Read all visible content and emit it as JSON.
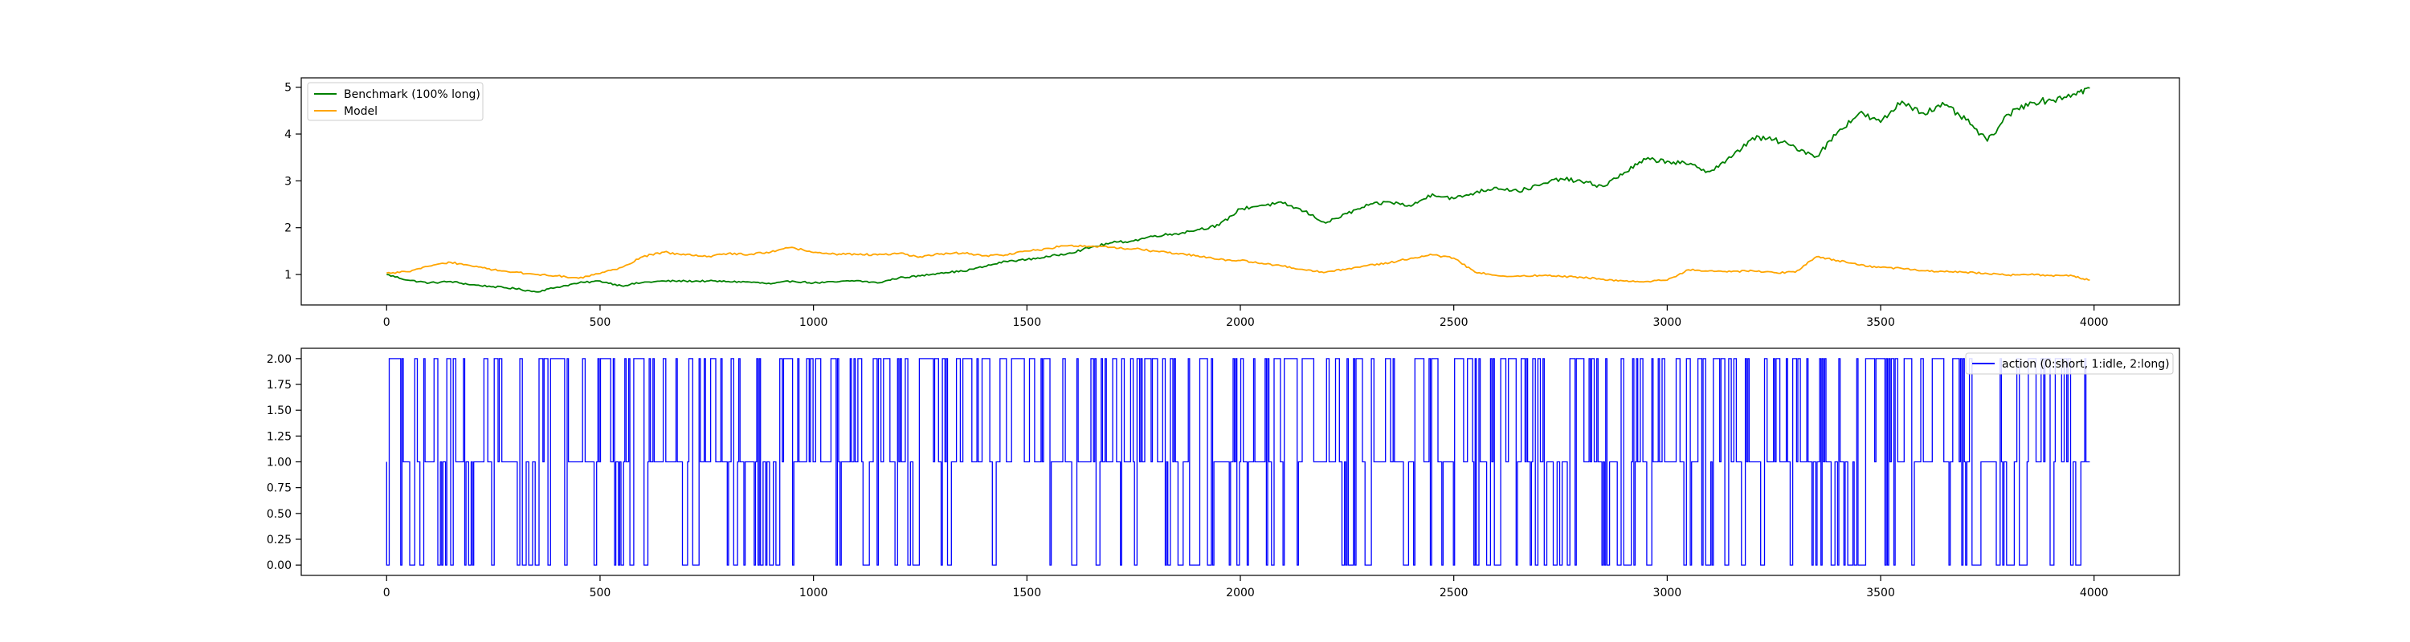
{
  "chart_data": [
    {
      "type": "line",
      "title": "",
      "xlabel": "",
      "ylabel": "",
      "xlim": [
        -200,
        4200
      ],
      "ylim": [
        0.35,
        5.2
      ],
      "xticks": [
        0,
        500,
        1000,
        1500,
        2000,
        2500,
        3000,
        3500,
        4000
      ],
      "xtick_labels": [
        "0",
        "500",
        "1000",
        "1500",
        "2000",
        "2500",
        "3000",
        "3500",
        "4000"
      ],
      "yticks": [
        1,
        2,
        3,
        4,
        5
      ],
      "ytick_labels": [
        "1",
        "2",
        "3",
        "4",
        "5"
      ],
      "grid": false,
      "legend_position": "top-left",
      "series": [
        {
          "name": "Benchmark (100% long)",
          "color": "#008000",
          "x": [
            0,
            50,
            100,
            150,
            200,
            250,
            300,
            350,
            400,
            450,
            500,
            550,
            600,
            650,
            700,
            750,
            800,
            850,
            900,
            950,
            1000,
            1050,
            1100,
            1150,
            1200,
            1250,
            1300,
            1350,
            1400,
            1450,
            1500,
            1550,
            1600,
            1650,
            1700,
            1750,
            1800,
            1850,
            1900,
            1950,
            2000,
            2050,
            2100,
            2150,
            2200,
            2250,
            2300,
            2350,
            2400,
            2450,
            2500,
            2550,
            2600,
            2650,
            2700,
            2750,
            2800,
            2850,
            2900,
            2950,
            3000,
            3050,
            3100,
            3150,
            3200,
            3250,
            3300,
            3350,
            3400,
            3450,
            3500,
            3550,
            3600,
            3650,
            3700,
            3750,
            3800,
            3850,
            3900,
            3950,
            3990
          ],
          "y": [
            1.0,
            0.88,
            0.82,
            0.85,
            0.78,
            0.74,
            0.7,
            0.63,
            0.73,
            0.82,
            0.86,
            0.76,
            0.83,
            0.86,
            0.86,
            0.86,
            0.85,
            0.84,
            0.8,
            0.86,
            0.82,
            0.84,
            0.87,
            0.82,
            0.93,
            0.97,
            1.04,
            1.07,
            1.17,
            1.28,
            1.32,
            1.38,
            1.46,
            1.58,
            1.68,
            1.72,
            1.83,
            1.87,
            1.96,
            2.05,
            2.4,
            2.48,
            2.52,
            2.35,
            2.1,
            2.3,
            2.48,
            2.55,
            2.46,
            2.72,
            2.62,
            2.75,
            2.86,
            2.78,
            2.9,
            3.05,
            2.98,
            2.88,
            3.18,
            3.46,
            3.42,
            3.35,
            3.2,
            3.5,
            3.92,
            3.88,
            3.72,
            3.52,
            4.05,
            4.45,
            4.25,
            4.7,
            4.45,
            4.62,
            4.3,
            3.85,
            4.42,
            4.68,
            4.72,
            4.85,
            4.98
          ]
        },
        {
          "name": "Model",
          "color": "#FFA500",
          "x": [
            0,
            50,
            100,
            150,
            200,
            250,
            300,
            350,
            400,
            450,
            500,
            550,
            600,
            650,
            700,
            750,
            800,
            850,
            900,
            950,
            1000,
            1050,
            1100,
            1150,
            1200,
            1250,
            1300,
            1350,
            1400,
            1450,
            1500,
            1550,
            1600,
            1650,
            1700,
            1750,
            1800,
            1850,
            1900,
            1950,
            2000,
            2050,
            2100,
            2150,
            2200,
            2250,
            2300,
            2350,
            2400,
            2450,
            2500,
            2550,
            2600,
            2650,
            2700,
            2750,
            2800,
            2850,
            2900,
            2950,
            3000,
            3050,
            3100,
            3150,
            3200,
            3250,
            3300,
            3350,
            3400,
            3450,
            3500,
            3550,
            3600,
            3650,
            3700,
            3750,
            3800,
            3850,
            3900,
            3950,
            3990
          ],
          "y": [
            1.03,
            1.06,
            1.18,
            1.26,
            1.18,
            1.1,
            1.05,
            1.0,
            0.97,
            0.92,
            1.02,
            1.15,
            1.38,
            1.48,
            1.42,
            1.38,
            1.45,
            1.43,
            1.48,
            1.58,
            1.47,
            1.44,
            1.43,
            1.42,
            1.45,
            1.38,
            1.44,
            1.46,
            1.4,
            1.42,
            1.5,
            1.56,
            1.62,
            1.6,
            1.58,
            1.55,
            1.5,
            1.45,
            1.4,
            1.32,
            1.3,
            1.24,
            1.18,
            1.1,
            1.05,
            1.12,
            1.2,
            1.25,
            1.35,
            1.42,
            1.35,
            1.05,
            0.98,
            0.97,
            0.98,
            0.96,
            0.94,
            0.9,
            0.86,
            0.85,
            0.88,
            1.1,
            1.08,
            1.06,
            1.08,
            1.04,
            1.05,
            1.38,
            1.3,
            1.2,
            1.15,
            1.13,
            1.08,
            1.06,
            1.05,
            1.02,
            0.99,
            1.0,
            0.98,
            0.97,
            0.88
          ]
        }
      ]
    },
    {
      "type": "line",
      "title": "",
      "xlabel": "",
      "ylabel": "",
      "xlim": [
        -200,
        4200
      ],
      "ylim": [
        -0.1,
        2.1
      ],
      "xticks": [
        0,
        500,
        1000,
        1500,
        2000,
        2500,
        3000,
        3500,
        4000
      ],
      "xtick_labels": [
        "0",
        "500",
        "1000",
        "1500",
        "2000",
        "2500",
        "3000",
        "3500",
        "4000"
      ],
      "yticks": [
        0,
        0.25,
        0.5,
        0.75,
        1.0,
        1.25,
        1.5,
        1.75,
        2.0
      ],
      "ytick_labels": [
        "0.00",
        "0.25",
        "0.50",
        "0.75",
        "1.00",
        "1.25",
        "1.50",
        "1.75",
        "2.00"
      ],
      "grid": false,
      "legend_position": "top-right",
      "series": [
        {
          "name": "action (0:short, 1:idle, 2:long)",
          "color": "#0000FF",
          "x_range": [
            0,
            3990
          ],
          "values": [
            0,
            1,
            2
          ],
          "distribution": {
            "long_fraction": 0.35,
            "short_fraction": 0.22
          }
        }
      ]
    }
  ]
}
